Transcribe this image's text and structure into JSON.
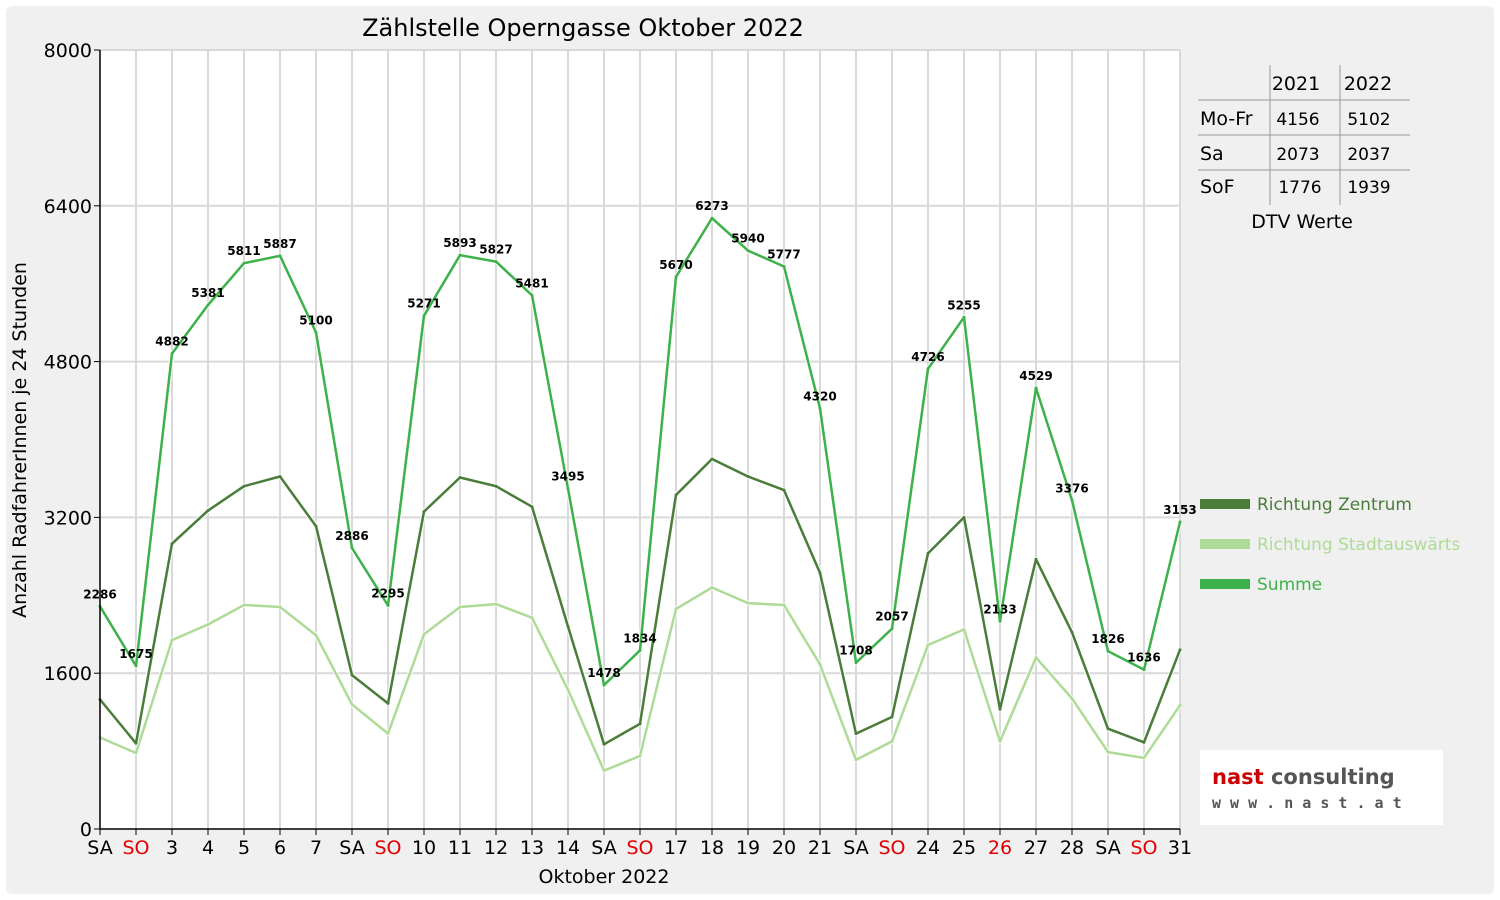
{
  "chart_data": {
    "type": "line",
    "title": "Zählstelle Operngasse Oktober 2022",
    "xlabel": "Oktober 2022",
    "ylabel": "Anzahl RadfahrerInnen je 24 Stunden",
    "ylim": [
      0,
      8000
    ],
    "yticks": [
      "0",
      "1600",
      "3200",
      "4800",
      "6400",
      "8000"
    ],
    "grid": true,
    "legend_position": "right",
    "categories": [
      "SA",
      "SO",
      "3",
      "4",
      "5",
      "6",
      "7",
      "SA",
      "SO",
      "10",
      "11",
      "12",
      "13",
      "14",
      "SA",
      "SO",
      "17",
      "18",
      "19",
      "20",
      "21",
      "SA",
      "SO",
      "24",
      "25",
      "26",
      "27",
      "28",
      "SA",
      "SO",
      "31"
    ],
    "red_categories": [
      1,
      8,
      15,
      22,
      25,
      29
    ],
    "series": [
      {
        "name": "Richtung Zentrum",
        "color": "#4a7d3a",
        "values": [
          1330,
          880,
          2930,
          3270,
          3520,
          3620,
          3110,
          1580,
          1290,
          3260,
          3610,
          3520,
          3310,
          2080,
          870,
          1080,
          3430,
          3800,
          3620,
          3480,
          2630,
          980,
          1150,
          2830,
          3200,
          1230,
          2770,
          2020,
          1030,
          890,
          1840
        ]
      },
      {
        "name": "Richtung Stadtauswärts",
        "color": "#aedb98",
        "values": [
          940,
          780,
          1940,
          2100,
          2300,
          2280,
          1990,
          1280,
          980,
          2000,
          2280,
          2310,
          2170,
          1430,
          600,
          750,
          2260,
          2480,
          2320,
          2300,
          1690,
          710,
          900,
          1890,
          2050,
          900,
          1760,
          1340,
          790,
          730,
          1270
        ]
      },
      {
        "name": "Summe",
        "color": "#3db24a",
        "values": [
          2286,
          1675,
          4882,
          5381,
          5811,
          5887,
          5100,
          2886,
          2295,
          5271,
          5893,
          5827,
          5481,
          3495,
          1478,
          1834,
          5670,
          6273,
          5940,
          5777,
          4320,
          1708,
          2057,
          4726,
          5255,
          2133,
          4529,
          3376,
          1826,
          1636,
          3153
        ],
        "labels": [
          "2286",
          "1675",
          "4882",
          "5381",
          "5811",
          "5887",
          "5100",
          "2886",
          "2295",
          "5271",
          "5893",
          "5827",
          "5481",
          "3495",
          "1478",
          "1834",
          "5670",
          "6273",
          "5940",
          "5777",
          "4320",
          "1708",
          "2057",
          "4726",
          "5255",
          "2133",
          "4529",
          "3376",
          "1826",
          "1636",
          "3153"
        ]
      }
    ]
  },
  "dtv_table": {
    "caption": "DTV Werte",
    "headers": [
      "",
      "2021",
      "2022"
    ],
    "rows": [
      [
        "Mo-Fr",
        "4156",
        "5102"
      ],
      [
        "Sa",
        "2073",
        "2037"
      ],
      [
        "SoF",
        "1776",
        "1939"
      ]
    ]
  },
  "logo": {
    "name": "nast consulting",
    "url_text": "w w w . n a s t . a t",
    "color": "#cc0000"
  }
}
